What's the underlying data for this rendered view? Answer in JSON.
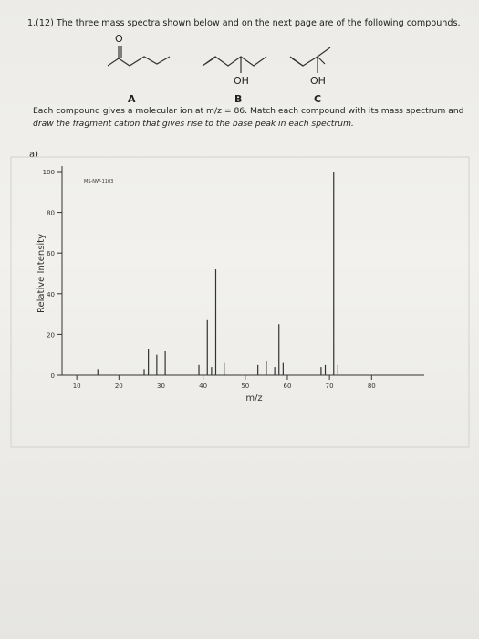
{
  "header": {
    "title": "1.(12) The three mass spectra shown below and on the next page are of the following compounds."
  },
  "compounds": [
    {
      "label": "A",
      "group": "O"
    },
    {
      "label": "B",
      "group": "OH"
    },
    {
      "label": "C",
      "group": "OH"
    }
  ],
  "instructions": [
    "Each compound gives a molecular ion at m/z = 86. Match each compound with its mass spectrum and",
    "draw the fragment cation that gives rise to the base peak in each spectrum."
  ],
  "part": "a)",
  "chart_data": {
    "type": "stick",
    "annotation": "MS-NW-1103",
    "xlabel": "m/z",
    "ylabel": "Relative Intensity",
    "x": [
      15,
      26,
      27,
      29,
      31,
      39,
      41,
      42,
      43,
      45,
      53,
      55,
      57,
      58,
      59,
      68,
      69,
      71,
      72
    ],
    "values": [
      3,
      3,
      13,
      10,
      12,
      5,
      27,
      4,
      52,
      6,
      5,
      7,
      4,
      25,
      6,
      4,
      5,
      100,
      5
    ],
    "color": "#333333",
    "xlim": [
      6.5,
      92.5
    ],
    "xticks": [
      10,
      20,
      30,
      40,
      50,
      60,
      70,
      80
    ],
    "ylim": [
      0,
      100
    ],
    "yticks": [
      0,
      20,
      40,
      60,
      80,
      100
    ]
  }
}
